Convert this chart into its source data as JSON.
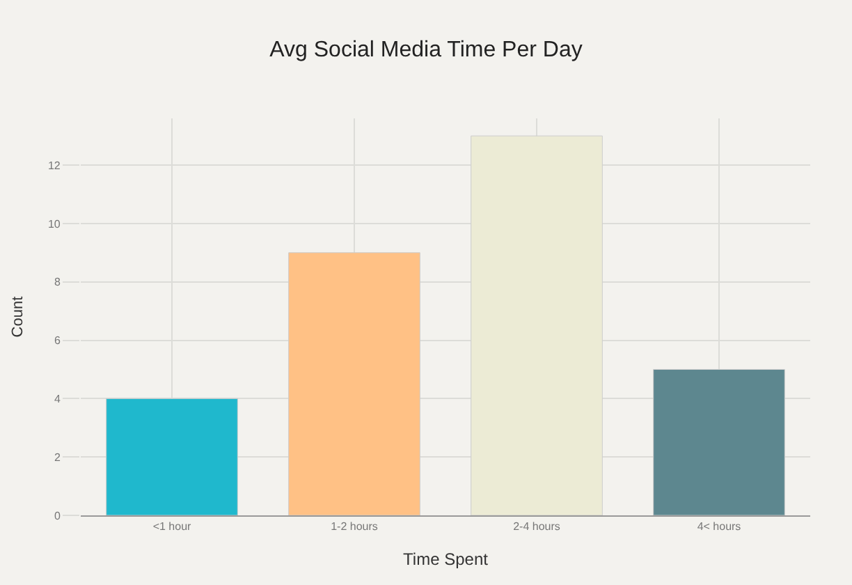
{
  "chart_data": {
    "type": "bar",
    "title": "Avg Social Media Time Per Day",
    "xlabel": "Time Spent",
    "ylabel": "Count",
    "categories": [
      "<1 hour",
      "1-2 hours",
      "2-4 hours",
      "4< hours"
    ],
    "values": [
      4,
      9,
      13,
      5
    ],
    "colors": [
      "#1fb8cd",
      "#ffc185",
      "#eceBd5",
      "#5d878f"
    ],
    "ylim": [
      0,
      13.6
    ],
    "yticks": [
      0,
      2,
      4,
      6,
      8,
      10,
      12
    ],
    "grid": true
  }
}
